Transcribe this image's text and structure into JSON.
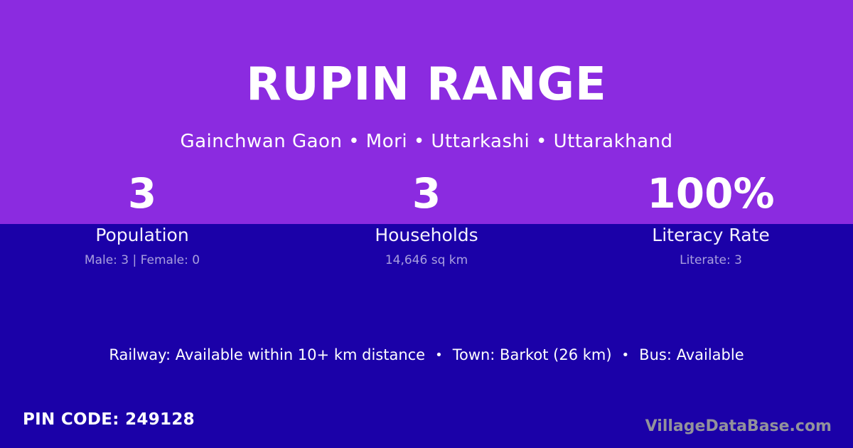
{
  "theme": {
    "top_bg": "#8b2be0",
    "bottom_bg": "#1b01a8",
    "text_primary": "#ffffff",
    "text_muted": "rgba(255,255,255,0.62)",
    "watermark_color": "#92929b"
  },
  "header": {
    "title": "RUPIN RANGE",
    "subtitle": "Gainchwan Gaon • Mori • Uttarkashi • Uttarakhand"
  },
  "stats": [
    {
      "value": "3",
      "label": "Population",
      "detail": "Male: 3 | Female: 0"
    },
    {
      "value": "3",
      "label": "Households",
      "detail": "14,646 sq km"
    },
    {
      "value": "100%",
      "label": "Literacy Rate",
      "detail": "Literate: 3"
    }
  ],
  "info": {
    "separator": "•",
    "segments": [
      "Railway: Available within 10+ km distance",
      "Town: Barkot (26 km)",
      "Bus: Available"
    ]
  },
  "footer": {
    "pin_code": "PIN CODE: 249128",
    "watermark": "VillageDataBase.com"
  }
}
